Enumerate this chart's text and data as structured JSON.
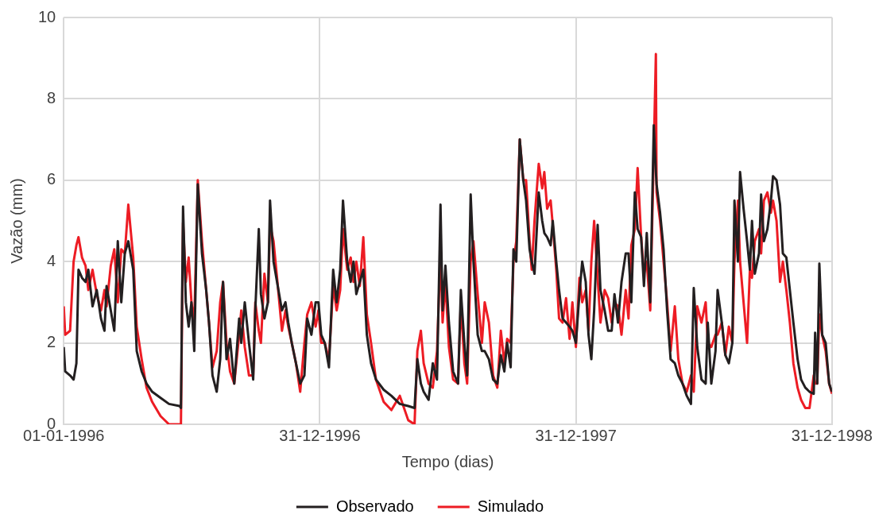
{
  "chart_data": {
    "type": "line",
    "xlabel": "Tempo (dias)",
    "ylabel": "Vazão (mm)",
    "x": [
      "1996-01-01",
      "1996-01-03",
      "1996-01-10",
      "1996-01-15",
      "1996-01-19",
      "1996-01-22",
      "1996-01-27",
      "1996-02-01",
      "1996-02-05",
      "1996-02-11",
      "1996-02-17",
      "1996-02-23",
      "1996-02-28",
      "1996-03-02",
      "1996-03-08",
      "1996-03-13",
      "1996-03-18",
      "1996-03-23",
      "1996-03-28",
      "1996-04-02",
      "1996-04-09",
      "1996-04-14",
      "1996-04-21",
      "1996-04-28",
      "1996-05-06",
      "1996-05-18",
      "1996-05-30",
      "1996-06-14",
      "1996-06-16",
      "1996-06-19",
      "1996-06-23",
      "1996-06-27",
      "1996-07-01",
      "1996-07-05",
      "1996-07-10",
      "1996-07-16",
      "1996-07-22",
      "1996-07-26",
      "1996-07-31",
      "1996-08-06",
      "1996-08-11",
      "1996-08-15",
      "1996-08-20",
      "1996-08-25",
      "1996-08-31",
      "1996-09-07",
      "1996-09-10",
      "1996-09-15",
      "1996-09-21",
      "1996-09-27",
      "1996-09-30",
      "1996-10-05",
      "1996-10-08",
      "1996-10-13",
      "1996-10-18",
      "1996-10-21",
      "1996-10-26",
      "1996-10-31",
      "1996-11-07",
      "1996-11-12",
      "1996-11-16",
      "1996-11-21",
      "1996-11-27",
      "1996-12-03",
      "1996-12-09",
      "1996-12-13",
      "1996-12-19",
      "1996-12-25",
      "1996-12-29",
      "1997-01-02",
      "1997-01-07",
      "1997-01-13",
      "1997-01-19",
      "1997-01-24",
      "1997-01-29",
      "1997-02-02",
      "1997-02-08",
      "1997-02-13",
      "1997-02-17",
      "1997-02-21",
      "1997-02-26",
      "1997-03-03",
      "1997-03-08",
      "1997-03-14",
      "1997-03-21",
      "1997-04-01",
      "1997-04-12",
      "1997-04-24",
      "1997-05-06",
      "1997-05-15",
      "1997-05-19",
      "1997-05-24",
      "1997-05-28",
      "1997-06-04",
      "1997-06-10",
      "1997-06-16",
      "1997-06-21",
      "1997-06-24",
      "1997-06-28",
      "1997-07-03",
      "1997-07-09",
      "1997-07-16",
      "1997-07-20",
      "1997-07-25",
      "1997-07-29",
      "1997-08-03",
      "1997-08-07",
      "1997-08-13",
      "1997-08-19",
      "1997-08-23",
      "1997-08-29",
      "1997-09-04",
      "1997-09-10",
      "1997-09-15",
      "1997-09-20",
      "1997-09-24",
      "1997-09-29",
      "1997-10-03",
      "1997-10-07",
      "1997-10-12",
      "1997-10-17",
      "1997-10-21",
      "1997-10-26",
      "1997-10-29",
      "1997-11-02",
      "1997-11-08",
      "1997-11-13",
      "1997-11-16",
      "1997-11-20",
      "1997-11-25",
      "1997-11-28",
      "1997-12-03",
      "1997-12-07",
      "1997-12-12",
      "1997-12-17",
      "1997-12-22",
      "1997-12-26",
      "1997-12-31",
      "1998-01-05",
      "1998-01-09",
      "1998-01-14",
      "1998-01-18",
      "1998-01-22",
      "1998-01-26",
      "1998-01-31",
      "1998-02-04",
      "1998-02-10",
      "1998-02-15",
      "1998-02-20",
      "1998-02-24",
      "1998-03-01",
      "1998-03-06",
      "1998-03-12",
      "1998-03-16",
      "1998-03-20",
      "1998-03-25",
      "1998-03-29",
      "1998-04-03",
      "1998-04-07",
      "1998-04-11",
      "1998-04-16",
      "1998-04-21",
      "1998-04-24",
      "1998-04-25",
      "1998-04-30",
      "1998-05-05",
      "1998-05-10",
      "1998-05-15",
      "1998-05-21",
      "1998-05-26",
      "1998-06-01",
      "1998-06-07",
      "1998-06-13",
      "1998-06-17",
      "1998-06-22",
      "1998-06-28",
      "1998-07-04",
      "1998-07-07",
      "1998-07-12",
      "1998-07-18",
      "1998-07-21",
      "1998-07-27",
      "1998-08-01",
      "1998-08-06",
      "1998-08-11",
      "1998-08-14",
      "1998-08-19",
      "1998-08-22",
      "1998-08-27",
      "1998-09-01",
      "1998-09-05",
      "1998-09-08",
      "1998-09-12",
      "1998-09-18",
      "1998-09-21",
      "1998-09-25",
      "1998-09-30",
      "1998-10-05",
      "1998-10-08",
      "1998-10-13",
      "1998-10-18",
      "1998-10-22",
      "1998-10-27",
      "1998-11-01",
      "1998-11-06",
      "1998-11-12",
      "1998-11-17",
      "1998-11-23",
      "1998-11-29",
      "1998-12-05",
      "1998-12-07",
      "1998-12-10",
      "1998-12-13",
      "1998-12-17",
      "1998-12-22",
      "1998-12-27",
      "1998-12-31"
    ],
    "series": [
      {
        "name": "Observado",
        "color": "#231f20",
        "values": [
          1.9,
          1.3,
          1.2,
          1.1,
          1.5,
          3.8,
          3.6,
          3.5,
          3.8,
          2.9,
          3.3,
          2.6,
          2.3,
          3.4,
          2.8,
          2.3,
          4.5,
          3.0,
          4.2,
          4.5,
          3.8,
          1.8,
          1.3,
          1.0,
          0.8,
          0.65,
          0.5,
          0.45,
          0.4,
          5.35,
          3.0,
          2.4,
          3.0,
          1.8,
          5.9,
          4.2,
          3.3,
          2.5,
          1.2,
          0.8,
          1.6,
          3.5,
          1.6,
          2.1,
          1.0,
          2.6,
          2.0,
          3.0,
          2.0,
          1.1,
          2.8,
          4.8,
          3.2,
          2.6,
          3.0,
          5.5,
          4.0,
          3.5,
          2.8,
          3.0,
          2.5,
          2.0,
          1.5,
          1.0,
          1.2,
          2.6,
          2.2,
          3.0,
          3.0,
          2.2,
          2.0,
          1.4,
          3.8,
          3.0,
          3.8,
          5.5,
          4.0,
          3.5,
          4.0,
          3.2,
          3.5,
          3.8,
          2.2,
          1.5,
          1.1,
          0.85,
          0.7,
          0.5,
          0.45,
          0.4,
          1.6,
          1.0,
          0.8,
          0.6,
          1.5,
          1.1,
          5.4,
          2.8,
          3.9,
          2.5,
          1.3,
          1.0,
          3.3,
          2.0,
          1.2,
          5.65,
          4.0,
          2.2,
          1.8,
          1.8,
          1.6,
          1.1,
          1.0,
          1.7,
          1.3,
          2.0,
          1.4,
          4.3,
          4.0,
          7.0,
          6.0,
          5.5,
          4.3,
          4.0,
          3.7,
          5.7,
          5.0,
          4.7,
          4.6,
          4.4,
          5.0,
          4.0,
          3.3,
          2.6,
          2.5,
          2.4,
          2.3,
          2.0,
          3.2,
          4.0,
          3.5,
          2.2,
          1.6,
          2.8,
          4.9,
          3.3,
          2.8,
          2.3,
          2.3,
          3.2,
          2.5,
          3.5,
          4.2,
          4.2,
          3.0,
          5.7,
          4.8,
          4.6,
          3.4,
          4.7,
          3.0,
          7.35,
          6.2,
          5.9,
          5.2,
          4.3,
          2.8,
          1.6,
          1.5,
          1.2,
          1.0,
          0.7,
          0.5,
          3.35,
          1.9,
          1.1,
          1.0,
          2.5,
          1.0,
          1.8,
          3.3,
          2.5,
          1.7,
          1.5,
          2.0,
          5.5,
          4.0,
          6.2,
          5.3,
          4.5,
          3.8,
          5.0,
          3.7,
          4.2,
          5.65,
          4.5,
          4.8,
          5.5,
          6.1,
          6.0,
          5.4,
          4.2,
          4.1,
          3.3,
          2.5,
          1.6,
          1.1,
          0.9,
          0.8,
          0.75,
          2.25,
          1.0,
          3.95,
          2.2,
          2.0,
          1.0,
          0.8
        ]
      },
      {
        "name": "Simulado",
        "color": "#ed1c24",
        "values": [
          2.9,
          2.2,
          2.3,
          4.0,
          4.4,
          4.6,
          4.1,
          3.9,
          3.3,
          3.8,
          3.2,
          2.8,
          3.3,
          2.9,
          3.9,
          4.3,
          3.0,
          4.3,
          4.2,
          5.4,
          4.1,
          2.4,
          1.6,
          0.9,
          0.55,
          0.2,
          0.0,
          0.0,
          0.0,
          4.95,
          3.5,
          4.1,
          3.0,
          2.5,
          6.0,
          4.5,
          3.3,
          2.5,
          1.4,
          1.8,
          3.0,
          3.5,
          2.0,
          1.3,
          1.0,
          2.2,
          2.8,
          1.9,
          1.2,
          1.2,
          3.0,
          2.3,
          2.0,
          3.7,
          3.0,
          4.9,
          4.5,
          3.6,
          2.3,
          2.8,
          2.4,
          2.0,
          1.5,
          0.8,
          2.0,
          2.7,
          3.0,
          2.4,
          2.8,
          2.0,
          2.0,
          1.6,
          3.4,
          2.8,
          3.3,
          4.8,
          3.8,
          4.1,
          3.5,
          4.0,
          3.4,
          4.6,
          2.7,
          2.0,
          1.1,
          0.55,
          0.35,
          0.7,
          0.1,
          0.0,
          1.8,
          2.3,
          1.5,
          1.0,
          0.9,
          1.8,
          4.2,
          2.5,
          3.5,
          1.9,
          1.1,
          1.0,
          3.0,
          1.5,
          1.0,
          4.0,
          4.5,
          3.2,
          2.0,
          3.0,
          2.5,
          1.2,
          0.9,
          2.3,
          1.5,
          2.1,
          2.0,
          4.0,
          4.5,
          7.0,
          6.0,
          6.0,
          4.5,
          3.8,
          5.0,
          6.4,
          5.8,
          6.2,
          5.3,
          5.5,
          4.9,
          3.8,
          2.6,
          2.5,
          3.1,
          2.1,
          3.0,
          1.9,
          3.6,
          3.0,
          3.3,
          2.3,
          4.0,
          5.0,
          3.6,
          2.5,
          3.3,
          3.1,
          2.5,
          3.0,
          2.9,
          2.2,
          3.3,
          2.6,
          4.4,
          4.8,
          6.3,
          4.6,
          3.7,
          4.0,
          2.8,
          6.7,
          9.1,
          5.7,
          5.0,
          4.0,
          3.0,
          1.8,
          2.9,
          1.6,
          1.0,
          0.8,
          1.2,
          0.8,
          2.9,
          2.5,
          3.0,
          2.0,
          1.9,
          2.2,
          2.2,
          2.5,
          1.7,
          2.4,
          2.0,
          4.0,
          5.5,
          4.0,
          3.0,
          2.0,
          3.8,
          3.6,
          4.5,
          4.8,
          4.2,
          5.5,
          5.7,
          5.2,
          5.5,
          5.0,
          3.5,
          4.0,
          3.3,
          2.5,
          1.5,
          0.9,
          0.6,
          0.4,
          0.4,
          1.2,
          1.0,
          1.0,
          2.7,
          2.2,
          1.8,
          1.0,
          0.75
        ]
      }
    ],
    "xlim": [
      "1996-01-01",
      "1998-12-31"
    ],
    "xticks": [
      {
        "value": "1996-01-01",
        "label": "01-01-1996"
      },
      {
        "value": "1996-12-31",
        "label": "31-12-1996"
      },
      {
        "value": "1997-12-31",
        "label": "31-12-1997"
      },
      {
        "value": "1998-12-31",
        "label": "31-12-1998"
      }
    ],
    "ylim": [
      0,
      10
    ],
    "yticks": [
      0,
      2,
      4,
      6,
      8,
      10
    ],
    "grid": true,
    "legend": "bottom",
    "marker": "none",
    "line_style": "solid"
  }
}
